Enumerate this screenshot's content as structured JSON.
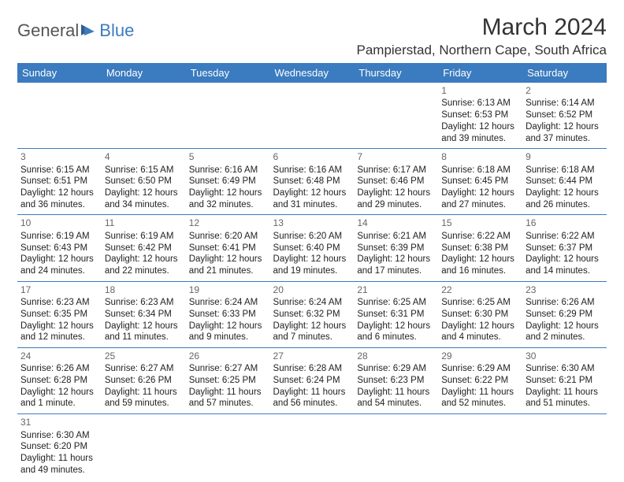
{
  "logo": {
    "part1": "General",
    "part2": "Blue",
    "icon_color": "#3b7bbf"
  },
  "title": "March 2024",
  "location": "Pampierstad, Northern Cape, South Africa",
  "colors": {
    "header_bg": "#3b7bbf",
    "header_fg": "#ffffff",
    "divider": "#3b7bbf",
    "daynum": "#666666",
    "text": "#222222"
  },
  "weekdays": [
    "Sunday",
    "Monday",
    "Tuesday",
    "Wednesday",
    "Thursday",
    "Friday",
    "Saturday"
  ],
  "weeks": [
    [
      null,
      null,
      null,
      null,
      null,
      {
        "n": "1",
        "sr": "6:13 AM",
        "ss": "6:53 PM",
        "dl": "12 hours and 39 minutes."
      },
      {
        "n": "2",
        "sr": "6:14 AM",
        "ss": "6:52 PM",
        "dl": "12 hours and 37 minutes."
      }
    ],
    [
      {
        "n": "3",
        "sr": "6:15 AM",
        "ss": "6:51 PM",
        "dl": "12 hours and 36 minutes."
      },
      {
        "n": "4",
        "sr": "6:15 AM",
        "ss": "6:50 PM",
        "dl": "12 hours and 34 minutes."
      },
      {
        "n": "5",
        "sr": "6:16 AM",
        "ss": "6:49 PM",
        "dl": "12 hours and 32 minutes."
      },
      {
        "n": "6",
        "sr": "6:16 AM",
        "ss": "6:48 PM",
        "dl": "12 hours and 31 minutes."
      },
      {
        "n": "7",
        "sr": "6:17 AM",
        "ss": "6:46 PM",
        "dl": "12 hours and 29 minutes."
      },
      {
        "n": "8",
        "sr": "6:18 AM",
        "ss": "6:45 PM",
        "dl": "12 hours and 27 minutes."
      },
      {
        "n": "9",
        "sr": "6:18 AM",
        "ss": "6:44 PM",
        "dl": "12 hours and 26 minutes."
      }
    ],
    [
      {
        "n": "10",
        "sr": "6:19 AM",
        "ss": "6:43 PM",
        "dl": "12 hours and 24 minutes."
      },
      {
        "n": "11",
        "sr": "6:19 AM",
        "ss": "6:42 PM",
        "dl": "12 hours and 22 minutes."
      },
      {
        "n": "12",
        "sr": "6:20 AM",
        "ss": "6:41 PM",
        "dl": "12 hours and 21 minutes."
      },
      {
        "n": "13",
        "sr": "6:20 AM",
        "ss": "6:40 PM",
        "dl": "12 hours and 19 minutes."
      },
      {
        "n": "14",
        "sr": "6:21 AM",
        "ss": "6:39 PM",
        "dl": "12 hours and 17 minutes."
      },
      {
        "n": "15",
        "sr": "6:22 AM",
        "ss": "6:38 PM",
        "dl": "12 hours and 16 minutes."
      },
      {
        "n": "16",
        "sr": "6:22 AM",
        "ss": "6:37 PM",
        "dl": "12 hours and 14 minutes."
      }
    ],
    [
      {
        "n": "17",
        "sr": "6:23 AM",
        "ss": "6:35 PM",
        "dl": "12 hours and 12 minutes."
      },
      {
        "n": "18",
        "sr": "6:23 AM",
        "ss": "6:34 PM",
        "dl": "12 hours and 11 minutes."
      },
      {
        "n": "19",
        "sr": "6:24 AM",
        "ss": "6:33 PM",
        "dl": "12 hours and 9 minutes."
      },
      {
        "n": "20",
        "sr": "6:24 AM",
        "ss": "6:32 PM",
        "dl": "12 hours and 7 minutes."
      },
      {
        "n": "21",
        "sr": "6:25 AM",
        "ss": "6:31 PM",
        "dl": "12 hours and 6 minutes."
      },
      {
        "n": "22",
        "sr": "6:25 AM",
        "ss": "6:30 PM",
        "dl": "12 hours and 4 minutes."
      },
      {
        "n": "23",
        "sr": "6:26 AM",
        "ss": "6:29 PM",
        "dl": "12 hours and 2 minutes."
      }
    ],
    [
      {
        "n": "24",
        "sr": "6:26 AM",
        "ss": "6:28 PM",
        "dl": "12 hours and 1 minute."
      },
      {
        "n": "25",
        "sr": "6:27 AM",
        "ss": "6:26 PM",
        "dl": "11 hours and 59 minutes."
      },
      {
        "n": "26",
        "sr": "6:27 AM",
        "ss": "6:25 PM",
        "dl": "11 hours and 57 minutes."
      },
      {
        "n": "27",
        "sr": "6:28 AM",
        "ss": "6:24 PM",
        "dl": "11 hours and 56 minutes."
      },
      {
        "n": "28",
        "sr": "6:29 AM",
        "ss": "6:23 PM",
        "dl": "11 hours and 54 minutes."
      },
      {
        "n": "29",
        "sr": "6:29 AM",
        "ss": "6:22 PM",
        "dl": "11 hours and 52 minutes."
      },
      {
        "n": "30",
        "sr": "6:30 AM",
        "ss": "6:21 PM",
        "dl": "11 hours and 51 minutes."
      }
    ],
    [
      {
        "n": "31",
        "sr": "6:30 AM",
        "ss": "6:20 PM",
        "dl": "11 hours and 49 minutes."
      },
      null,
      null,
      null,
      null,
      null,
      null
    ]
  ],
  "labels": {
    "sunrise": "Sunrise:",
    "sunset": "Sunset:",
    "daylight": "Daylight:"
  }
}
